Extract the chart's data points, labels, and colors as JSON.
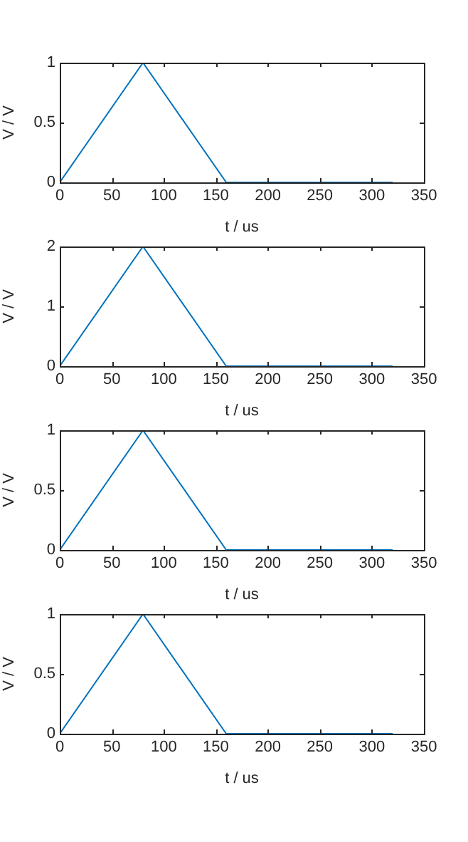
{
  "chart_data": [
    {
      "type": "line",
      "xlabel": "t / us",
      "ylabel": "V / V",
      "x": [
        0,
        80,
        160,
        320
      ],
      "series": [
        {
          "color": "#0072bd",
          "values": [
            0,
            1,
            0,
            0
          ]
        }
      ],
      "xlim": [
        0,
        350
      ],
      "xticks": [
        0,
        50,
        100,
        150,
        200,
        250,
        300,
        350
      ],
      "ylim": [
        0,
        1
      ],
      "yticks": [
        0,
        0.5,
        1
      ],
      "grid": false,
      "legend": false
    },
    {
      "type": "line",
      "xlabel": "t / us",
      "ylabel": "V / V",
      "x": [
        0,
        80,
        160,
        320
      ],
      "series": [
        {
          "color": "#0072bd",
          "values": [
            0,
            2,
            0,
            0
          ]
        }
      ],
      "xlim": [
        0,
        350
      ],
      "xticks": [
        0,
        50,
        100,
        150,
        200,
        250,
        300,
        350
      ],
      "ylim": [
        0,
        2
      ],
      "yticks": [
        0,
        1,
        2
      ],
      "grid": false,
      "legend": false
    },
    {
      "type": "line",
      "xlabel": "t / us",
      "ylabel": "V / V",
      "x": [
        0,
        80,
        160,
        320
      ],
      "series": [
        {
          "color": "#0072bd",
          "values": [
            0,
            1,
            0,
            0
          ]
        }
      ],
      "xlim": [
        0,
        350
      ],
      "xticks": [
        0,
        50,
        100,
        150,
        200,
        250,
        300,
        350
      ],
      "ylim": [
        0,
        1
      ],
      "yticks": [
        0,
        0.5,
        1
      ],
      "grid": false,
      "legend": false
    },
    {
      "type": "line",
      "xlabel": "t / us",
      "ylabel": "V / V",
      "x": [
        0,
        80,
        160,
        320
      ],
      "series": [
        {
          "color": "#0072bd",
          "values": [
            0,
            1,
            0,
            0
          ]
        }
      ],
      "xlim": [
        0,
        350
      ],
      "xticks": [
        0,
        50,
        100,
        150,
        200,
        250,
        300,
        350
      ],
      "ylim": [
        0,
        1
      ],
      "yticks": [
        0,
        0.5,
        1
      ],
      "grid": false,
      "legend": false
    }
  ]
}
